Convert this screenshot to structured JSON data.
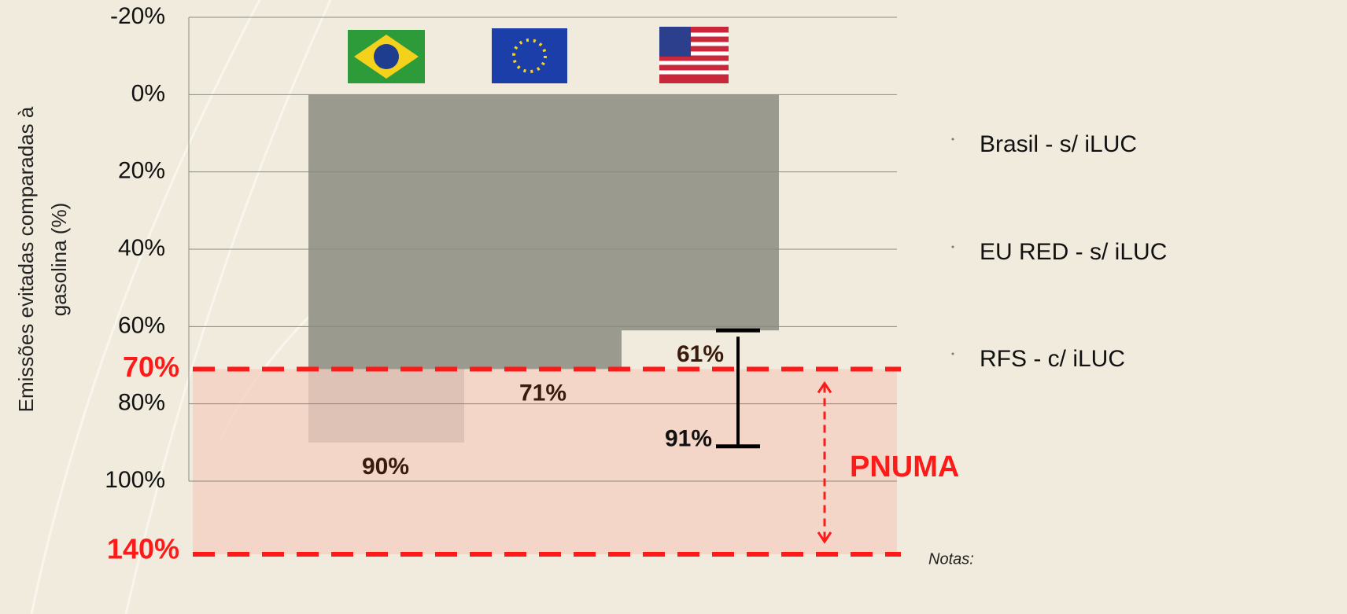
{
  "chart_data": {
    "type": "bar",
    "ylabel": [
      "Emissões evitadas comparadas à",
      "gasolina (%)"
    ],
    "categories": [
      "Brasil - s/ iLUC",
      "EU RED - s/ iLUC",
      "RFS - c/ iLUC"
    ],
    "values": [
      90,
      71,
      61
    ],
    "value_labels": [
      "90%",
      "71%",
      "61%"
    ],
    "upper_values": [
      null,
      null,
      91
    ],
    "upper_value_labels": [
      null,
      null,
      "91%"
    ],
    "color": "#9b9a8f",
    "ylim": [
      -20,
      100
    ],
    "inverted": true,
    "yticks": [
      {
        "value": -20,
        "label": "-20%"
      },
      {
        "value": 0,
        "label": "0%"
      },
      {
        "value": 20,
        "label": "20%"
      },
      {
        "value": 40,
        "label": "40%"
      },
      {
        "value": 60,
        "label": "60%"
      },
      {
        "value": 80,
        "label": "80%"
      },
      {
        "value": 100,
        "label": "100%"
      }
    ],
    "grid": true,
    "band": {
      "label": "PNUMA",
      "lower": {
        "value": 70,
        "label": "70%"
      },
      "upper_label": "140%",
      "color": "#f4cfc1",
      "line_color": "#ff1a1a"
    },
    "note": "Notas:"
  }
}
